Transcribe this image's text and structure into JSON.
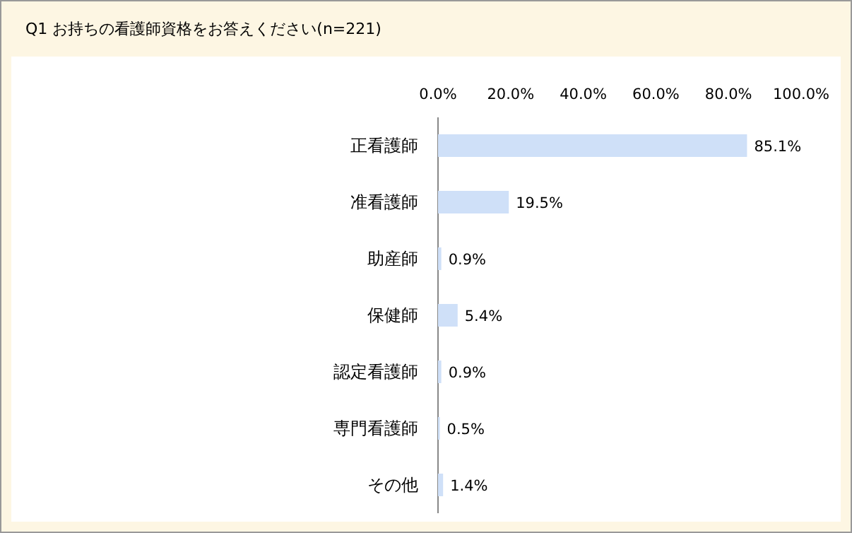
{
  "chart_data": {
    "type": "bar",
    "orientation": "horizontal",
    "title": "Q1 お持ちの看護師資格をお答えください(n=221)",
    "categories": [
      "正看護師",
      "准看護師",
      "助産師",
      "保健師",
      "認定看護師",
      "専門看護師",
      "その他"
    ],
    "values": [
      85.1,
      19.5,
      0.9,
      5.4,
      0.9,
      0.5,
      1.4
    ],
    "value_labels": [
      "85.1%",
      "19.5%",
      "0.9%",
      "5.4%",
      "0.9%",
      "0.5%",
      "1.4%"
    ],
    "color": "#cfe0f8",
    "xlim": [
      0,
      100
    ],
    "xticks": [
      {
        "value": 0,
        "label": "0.0%"
      },
      {
        "value": 20,
        "label": "20.0%"
      },
      {
        "value": 40,
        "label": "40.0%"
      },
      {
        "value": 60,
        "label": "60.0%"
      },
      {
        "value": 80,
        "label": "80.0%"
      },
      {
        "value": 100,
        "label": "100.0%"
      }
    ]
  }
}
